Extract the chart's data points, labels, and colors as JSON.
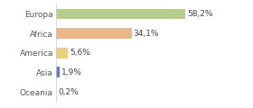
{
  "categories": [
    "Europa",
    "Africa",
    "America",
    "Asia",
    "Oceania"
  ],
  "values": [
    58.2,
    34.1,
    5.6,
    1.9,
    0.2
  ],
  "labels": [
    "58,2%",
    "34,1%",
    "5,6%",
    "1,9%",
    "0,2%"
  ],
  "bar_colors": [
    "#b5cc8e",
    "#e8b88a",
    "#e8d080",
    "#5b7ec9",
    "#dddddd"
  ],
  "background_color": "#ffffff",
  "xlim": [
    0,
    75
  ],
  "label_fontsize": 6.5,
  "tick_fontsize": 6.5,
  "bar_height": 0.55
}
